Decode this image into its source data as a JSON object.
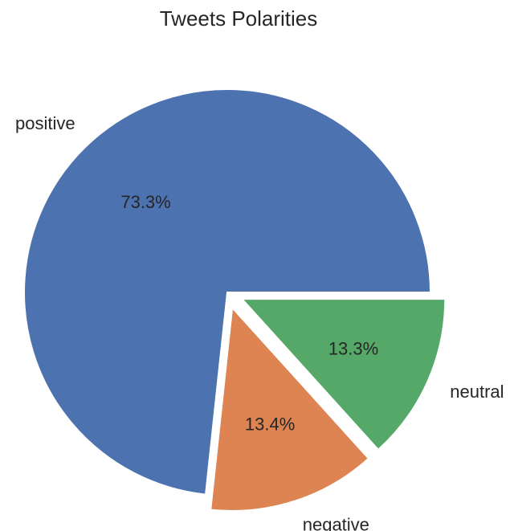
{
  "chart_data": {
    "type": "pie",
    "title": "Tweets Polarities",
    "labels": [
      "positive",
      "negative",
      "neutral"
    ],
    "values": [
      73.3,
      13.4,
      13.3
    ],
    "value_labels": [
      "73.3%",
      "13.4%",
      "13.3%"
    ],
    "colors": [
      "#4C72B0",
      "#DD8452",
      "#55A868"
    ],
    "exploded": [
      false,
      true,
      true
    ],
    "legend": "none"
  }
}
